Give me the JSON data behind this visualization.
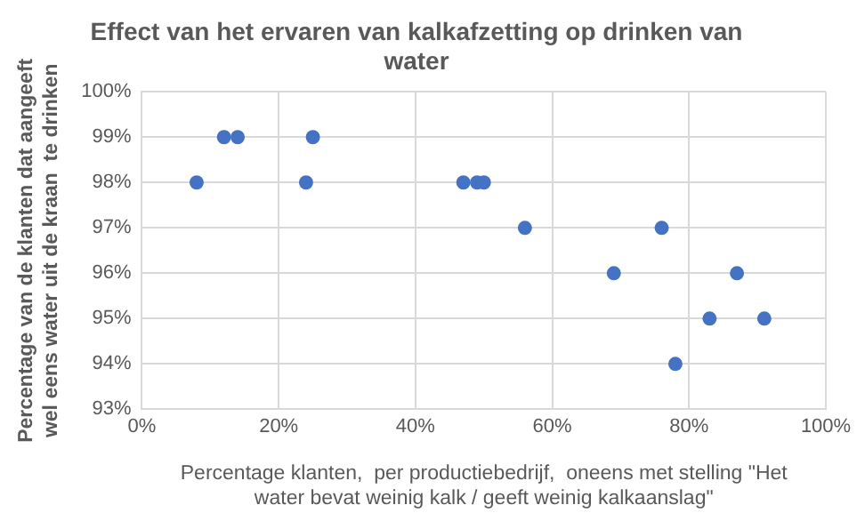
{
  "chart_data": {
    "type": "scatter",
    "title": "Effect van het ervaren van kalkafzetting op drinken van\nwater",
    "xlabel": "Percentage klanten,  per productiebedrijf,  oneens met stelling \"Het\nwater bevat weinig kalk / geeft weinig kalkaanslag\"",
    "ylabel": "Percentage van de klanten dat aangeeft\nwel eens water uit de kraan  te drinken",
    "x": [
      8,
      12,
      14,
      24,
      25,
      47,
      49,
      50,
      56,
      69,
      76,
      78,
      83,
      87,
      91
    ],
    "series": [
      {
        "color": "#4472c4",
        "values": [
          98,
          99,
          99,
          98,
          99,
          98,
          98,
          98,
          97,
          96,
          97,
          94,
          95,
          96,
          95
        ]
      }
    ],
    "xlim": [
      0,
      100
    ],
    "xticks": [
      {
        "value": 0,
        "label": "0%"
      },
      {
        "value": 20,
        "label": "20%"
      },
      {
        "value": 40,
        "label": "40%"
      },
      {
        "value": 60,
        "label": "60%"
      },
      {
        "value": 80,
        "label": "80%"
      },
      {
        "value": 100,
        "label": "100%"
      }
    ],
    "ylim": [
      93,
      100
    ],
    "yticks": [
      {
        "value": 93,
        "label": "93%"
      },
      {
        "value": 94,
        "label": "94%"
      },
      {
        "value": 95,
        "label": "95%"
      },
      {
        "value": 96,
        "label": "96%"
      },
      {
        "value": 97,
        "label": "97%"
      },
      {
        "value": 98,
        "label": "98%"
      },
      {
        "value": 99,
        "label": "99%"
      },
      {
        "value": 100,
        "label": "100%"
      }
    ],
    "grid": true,
    "marker": "circle",
    "legend": false
  }
}
